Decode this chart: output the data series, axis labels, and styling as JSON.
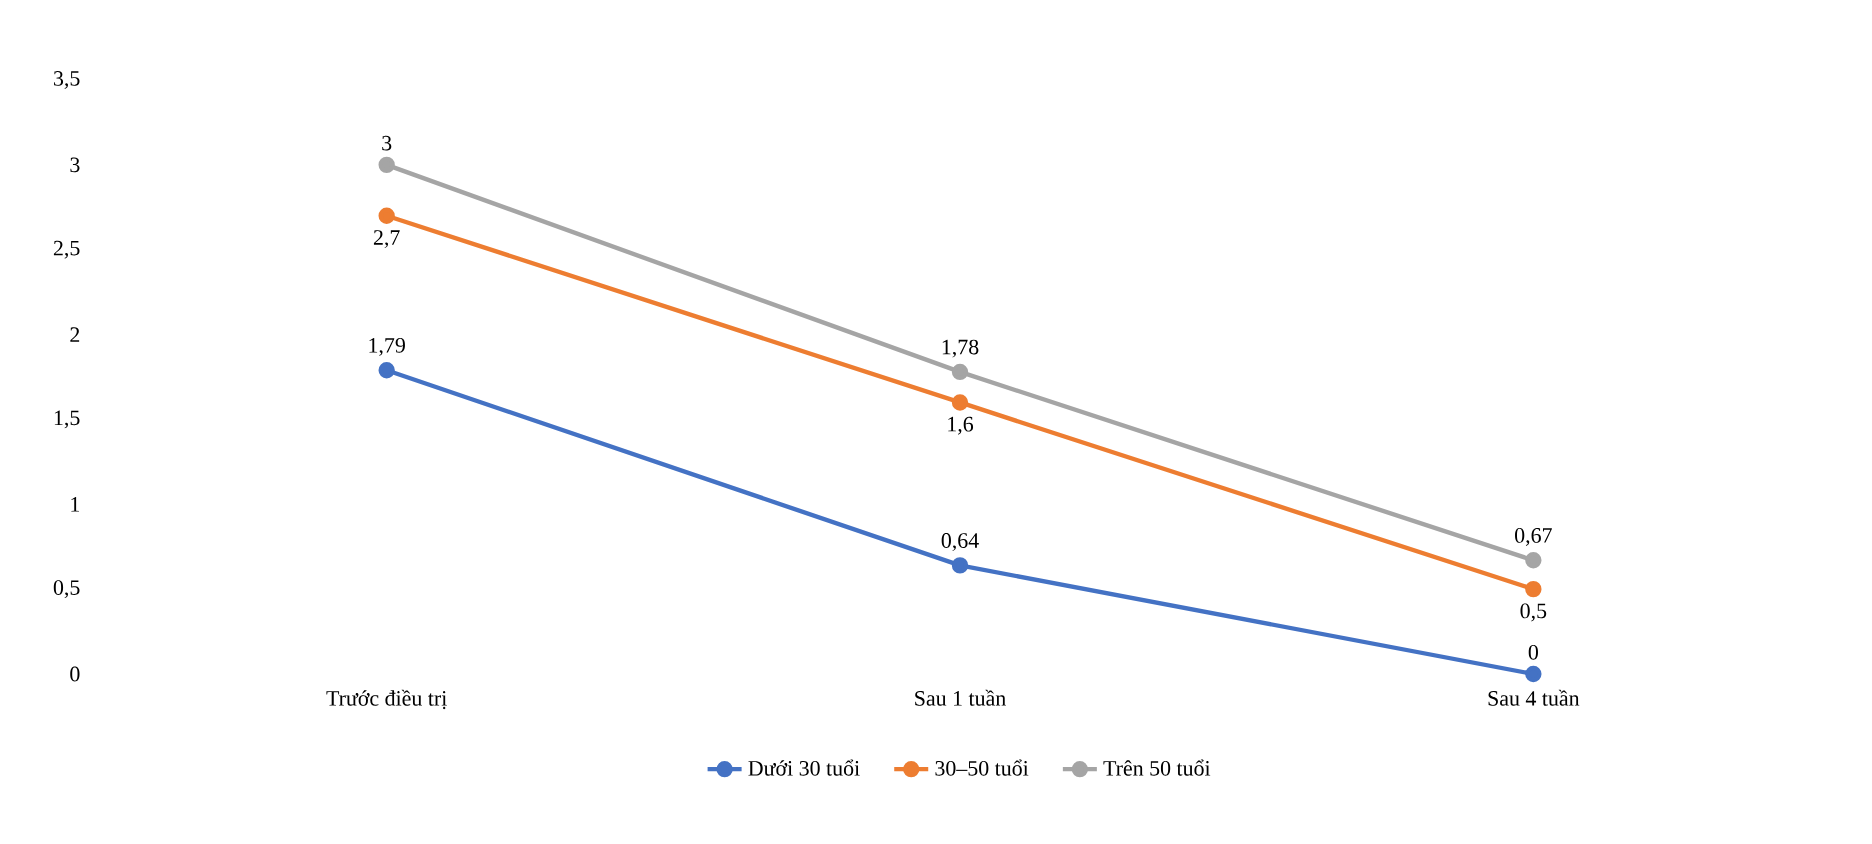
{
  "chart_data": {
    "type": "line",
    "categories": [
      "Trước điều trị",
      "Sau 1 tuần",
      "Sau 4 tuần"
    ],
    "series": [
      {
        "name": "Dưới 30 tuổi",
        "color": "#4472c4",
        "values": [
          1.79,
          0.64,
          0
        ],
        "value_labels": [
          "1,79",
          "0,64",
          "0"
        ]
      },
      {
        "name": "30–50 tuổi",
        "color": "#ed7d31",
        "values": [
          2.7,
          1.6,
          0.5
        ],
        "value_labels": [
          "2,7",
          "1,6",
          "0,5"
        ]
      },
      {
        "name": "Trên 50 tuổi",
        "color": "#a5a5a5",
        "values": [
          3,
          1.78,
          0.67
        ],
        "value_labels": [
          "3",
          "1,78",
          "0,67"
        ]
      }
    ],
    "ylim": [
      0,
      3.5
    ],
    "yticks": [
      0,
      {
        "value": 0.5,
        "label": "0,5"
      },
      1,
      {
        "value": 1.5,
        "label": "1,5"
      },
      2,
      {
        "value": 2.5,
        "label": "2,5"
      },
      3,
      {
        "value": 3.5,
        "label": "3,5"
      }
    ],
    "legend": "bottom",
    "marker": "circle",
    "line_style": "solid"
  }
}
